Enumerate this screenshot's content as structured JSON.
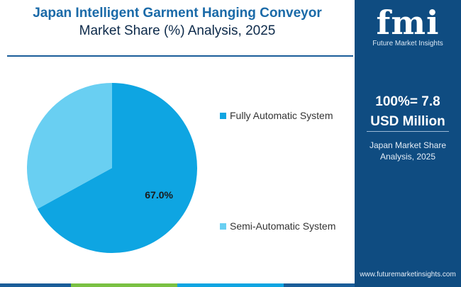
{
  "title": {
    "line1": "Japan Intelligent Garment Hanging Conveyor",
    "line2": "Market Share (%) Analysis, 2025"
  },
  "chart_data": {
    "type": "pie",
    "title": "Japan Intelligent Garment Hanging Conveyor Market Share (%) Analysis, 2025",
    "slices": [
      {
        "label": "Fully Automatic System",
        "value": 67.0,
        "color": "#0ea5e2",
        "data_label": "67.0%"
      },
      {
        "label": "Semi-Automatic System",
        "value": 33.0,
        "color": "#69cff2",
        "data_label": ""
      }
    ],
    "legend_position": "right"
  },
  "side_panel": {
    "logo_text": "fmi",
    "logo_sub": "Future Market Insights",
    "value_line1": "100%= 7.8",
    "value_line2": "USD Million",
    "caption_line1": "Japan Market Share",
    "caption_line2": "Analysis, 2025",
    "url": "www.futuremarketinsights.com",
    "background": "#0f4c81"
  },
  "bottom_strip_colors": [
    "#1a5d99",
    "#7ac143",
    "#0ea5e2",
    "#1a5d99"
  ]
}
